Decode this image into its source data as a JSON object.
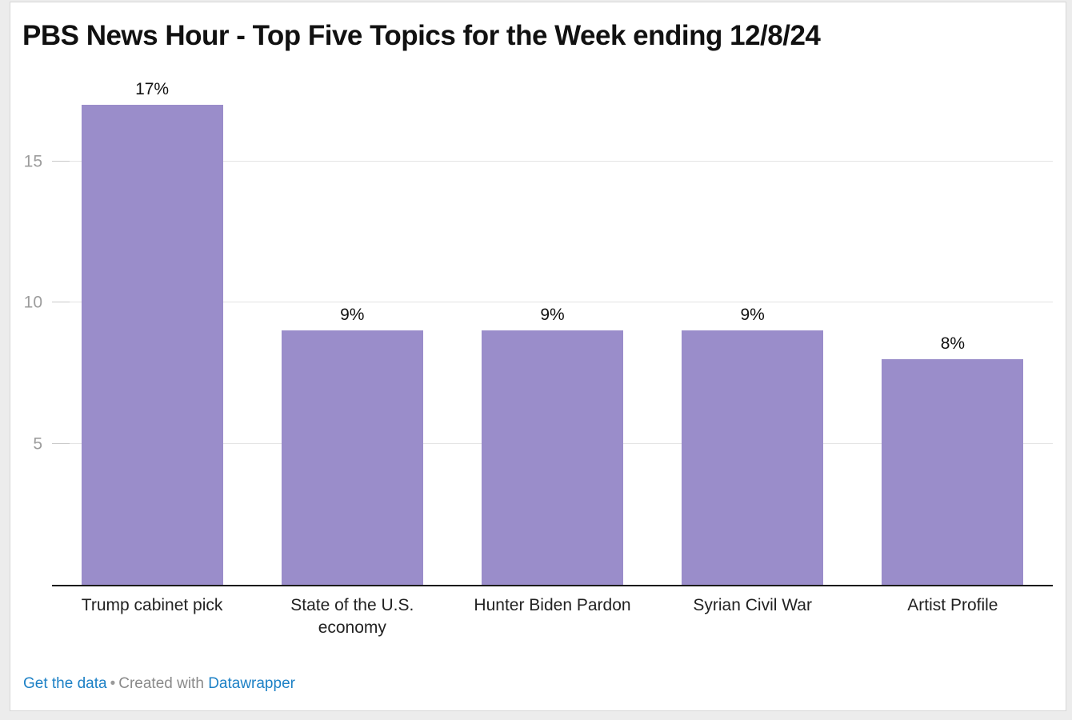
{
  "page": {
    "title": "PBS News Hour - Top Five Topics for the Week ending 12/8/24"
  },
  "footer": {
    "get_the_data": "Get the data",
    "separator": "•",
    "created_with": "Created with",
    "datawrapper": "Datawrapper"
  },
  "colors": {
    "bar": "#9a8dca",
    "link_blue": "#1d81c6",
    "axis_line": "#1a1a1a",
    "gridline": "#e4e4e4",
    "gridline_stub": "#c9c9c9",
    "tick_label": "#9c9c9c",
    "title_text": "#111111",
    "category_label": "#222222",
    "footer_gray": "#8a8a8a",
    "card_background": "#ffffff",
    "page_background": "#ececec"
  },
  "chart_data": {
    "type": "bar",
    "title": "PBS News Hour - Top Five Topics for the Week ending 12/8/24",
    "categories": [
      "Trump cabinet pick",
      "State of the U.S. economy",
      "Hunter Biden Pardon",
      "Syrian Civil War",
      "Artist Profile"
    ],
    "values": [
      17,
      9,
      9,
      9,
      8
    ],
    "data_labels": [
      "17%",
      "9%",
      "9%",
      "9%",
      "8%"
    ],
    "value_suffix": "%",
    "xlabel": "",
    "ylabel": "",
    "yticks": [
      5,
      10,
      15
    ],
    "ylim": [
      0,
      18
    ],
    "grid": true,
    "legend_position": "none",
    "bar_color": "#9a8dca"
  }
}
